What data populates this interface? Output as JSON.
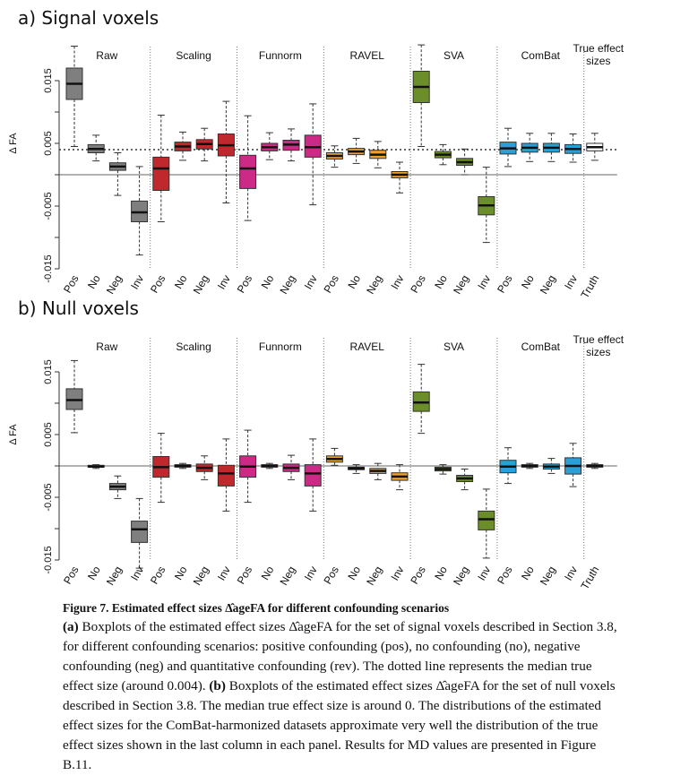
{
  "panels": [
    {
      "id": "a",
      "title": "a)  Signal voxels"
    },
    {
      "id": "b",
      "title": "b)  Null voxels"
    }
  ],
  "caption": {
    "title": "Figure 7. Estimated effect sizes Δ̂ageFA for different confounding scenarios",
    "part_a_label": "(a)",
    "part_a_text": " Boxplots of the estimated effect sizes Δ̂ageFA for the set of signal voxels described in Section 3.8, for different confounding scenarios: positive confounding (pos), no confounding (no), negative confounding (neg) and quantitative confounding (rev). The dotted line represents the median true effect size (around 0.004). ",
    "part_b_label": "(b)",
    "part_b_text": " Boxplots of the estimated effect sizes Δ̂ageFA for the set of null voxels described in Section 3.8. The median true effect size is around 0. The distributions of the estimated effect sizes for the ComBat-harmonized datasets approximate very well the distribution of the true effect sizes shown in the last column in each panel. Results for MD values are presented in Figure B.11."
  },
  "chart_data": [
    {
      "type": "boxplot",
      "title": "a)  Signal voxels",
      "ylabel": "Δ FA",
      "ylim": [
        -0.015,
        0.02
      ],
      "yticks": [
        "-0.015",
        "-0.005",
        "0.005",
        "0.015"
      ],
      "ytick_values": [
        -0.015,
        -0.005,
        0.005,
        0.015
      ],
      "hline_solid": 0,
      "hline_dotted": 0.004,
      "groups": [
        "Raw",
        "Scaling",
        "Funnorm",
        "RAVEL",
        "SVA",
        "ComBat",
        "True effect sizes"
      ],
      "colors": {
        "Raw": "#7f7f7f",
        "Scaling": "#c0282d",
        "Funnorm": "#cc2a86",
        "RAVEL": "#f0a02a",
        "SVA": "#6b8e2a",
        "ComBat": "#2aa0d8",
        "True effect sizes": "#ffffff"
      },
      "boxes": [
        {
          "group": "Raw",
          "label": "Pos",
          "min": 0.0045,
          "q1": 0.012,
          "median": 0.0145,
          "q3": 0.017,
          "max": 0.0205
        },
        {
          "group": "Raw",
          "label": "No",
          "min": 0.0022,
          "q1": 0.0035,
          "median": 0.0041,
          "q3": 0.0048,
          "max": 0.0063
        },
        {
          "group": "Raw",
          "label": "Neg",
          "min": -0.0033,
          "q1": 0.0007,
          "median": 0.0013,
          "q3": 0.0019,
          "max": 0.0035
        },
        {
          "group": "Raw",
          "label": "Inv",
          "min": -0.0128,
          "q1": -0.0075,
          "median": -0.006,
          "q3": -0.0042,
          "max": 0.0013
        },
        {
          "group": "Scaling",
          "label": "Pos",
          "min": -0.0075,
          "q1": -0.0025,
          "median": 0.001,
          "q3": 0.0028,
          "max": 0.0095
        },
        {
          "group": "Scaling",
          "label": "No",
          "min": 0.0023,
          "q1": 0.0038,
          "median": 0.0045,
          "q3": 0.0052,
          "max": 0.0068
        },
        {
          "group": "Scaling",
          "label": "Neg",
          "min": 0.0022,
          "q1": 0.0041,
          "median": 0.0049,
          "q3": 0.0056,
          "max": 0.0074
        },
        {
          "group": "Scaling",
          "label": "Inv",
          "min": -0.0045,
          "q1": 0.003,
          "median": 0.0047,
          "q3": 0.0065,
          "max": 0.0117
        },
        {
          "group": "Funnorm",
          "label": "Pos",
          "min": -0.0073,
          "q1": -0.0022,
          "median": 0.001,
          "q3": 0.0031,
          "max": 0.0094
        },
        {
          "group": "Funnorm",
          "label": "No",
          "min": 0.0024,
          "q1": 0.0038,
          "median": 0.0044,
          "q3": 0.005,
          "max": 0.0067
        },
        {
          "group": "Funnorm",
          "label": "Neg",
          "min": 0.0022,
          "q1": 0.0039,
          "median": 0.0048,
          "q3": 0.0055,
          "max": 0.0073
        },
        {
          "group": "Funnorm",
          "label": "Inv",
          "min": -0.0048,
          "q1": 0.0028,
          "median": 0.0044,
          "q3": 0.0063,
          "max": 0.0113
        },
        {
          "group": "RAVEL",
          "label": "Pos",
          "min": 0.0012,
          "q1": 0.0025,
          "median": 0.003,
          "q3": 0.0035,
          "max": 0.0046
        },
        {
          "group": "RAVEL",
          "label": "No",
          "min": 0.0018,
          "q1": 0.0032,
          "median": 0.0037,
          "q3": 0.0042,
          "max": 0.0058
        },
        {
          "group": "RAVEL",
          "label": "Neg",
          "min": 0.0011,
          "q1": 0.0026,
          "median": 0.0032,
          "q3": 0.0039,
          "max": 0.0053
        },
        {
          "group": "RAVEL",
          "label": "Inv",
          "min": -0.0029,
          "q1": -0.0005,
          "median": 0.0,
          "q3": 0.0005,
          "max": 0.002
        },
        {
          "group": "SVA",
          "label": "Pos",
          "min": 0.0045,
          "q1": 0.0115,
          "median": 0.014,
          "q3": 0.0165,
          "max": 0.0207
        },
        {
          "group": "SVA",
          "label": "No",
          "min": 0.0016,
          "q1": 0.0027,
          "median": 0.0032,
          "q3": 0.0037,
          "max": 0.0048
        },
        {
          "group": "SVA",
          "label": "Neg",
          "min": 0.0,
          "q1": 0.0015,
          "median": 0.002,
          "q3": 0.0026,
          "max": 0.0041
        },
        {
          "group": "SVA",
          "label": "Inv",
          "min": -0.0108,
          "q1": -0.0064,
          "median": -0.0049,
          "q3": -0.0035,
          "max": 0.0012
        },
        {
          "group": "ComBat",
          "label": "Pos",
          "min": 0.0013,
          "q1": 0.0033,
          "median": 0.0042,
          "q3": 0.0052,
          "max": 0.0074
        },
        {
          "group": "ComBat",
          "label": "No",
          "min": 0.0021,
          "q1": 0.0036,
          "median": 0.0043,
          "q3": 0.005,
          "max": 0.0066
        },
        {
          "group": "ComBat",
          "label": "Neg",
          "min": 0.0021,
          "q1": 0.0036,
          "median": 0.0043,
          "q3": 0.005,
          "max": 0.0066
        },
        {
          "group": "ComBat",
          "label": "Inv",
          "min": 0.002,
          "q1": 0.0034,
          "median": 0.0041,
          "q3": 0.0048,
          "max": 0.0065
        },
        {
          "group": "True effect sizes",
          "label": "Truth",
          "min": 0.0023,
          "q1": 0.0038,
          "median": 0.0044,
          "q3": 0.005,
          "max": 0.0066
        }
      ]
    },
    {
      "type": "boxplot",
      "title": "b)  Null voxels",
      "ylabel": "Δ FA",
      "ylim": [
        -0.015,
        0.02
      ],
      "yticks": [
        "-0.015",
        "-0.005",
        "0.005",
        "0.015"
      ],
      "ytick_values": [
        -0.015,
        -0.005,
        0.005,
        0.015
      ],
      "hline_solid": 0,
      "groups": [
        "Raw",
        "Scaling",
        "Funnorm",
        "RAVEL",
        "SVA",
        "ComBat",
        "True effect sizes"
      ],
      "colors": {
        "Raw": "#7f7f7f",
        "Scaling": "#c0282d",
        "Funnorm": "#cc2a86",
        "RAVEL": "#f0a02a",
        "SVA": "#6b8e2a",
        "ComBat": "#2aa0d8",
        "True effect sizes": "#ffffff"
      },
      "boxes": [
        {
          "group": "Raw",
          "label": "Pos",
          "min": 0.0053,
          "q1": 0.009,
          "median": 0.0105,
          "q3": 0.0123,
          "max": 0.0168
        },
        {
          "group": "Raw",
          "label": "No",
          "min": -0.0004,
          "q1": -0.0002,
          "median": -0.0001,
          "q3": 0.0001,
          "max": 0.0002
        },
        {
          "group": "Raw",
          "label": "Neg",
          "min": -0.0052,
          "q1": -0.0038,
          "median": -0.0033,
          "q3": -0.0028,
          "max": -0.0016
        },
        {
          "group": "Raw",
          "label": "Inv",
          "min": -0.0163,
          "q1": -0.0122,
          "median": -0.0101,
          "q3": -0.0088,
          "max": -0.0052
        },
        {
          "group": "Scaling",
          "label": "Pos",
          "min": -0.0058,
          "q1": -0.0018,
          "median": -0.0002,
          "q3": 0.0015,
          "max": 0.0052
        },
        {
          "group": "Scaling",
          "label": "No",
          "min": -0.0004,
          "q1": -0.0002,
          "median": 0.0,
          "q3": 0.0002,
          "max": 0.0004
        },
        {
          "group": "Scaling",
          "label": "Neg",
          "min": -0.0022,
          "q1": -0.0009,
          "median": -0.0003,
          "q3": 0.0003,
          "max": 0.0016
        },
        {
          "group": "Scaling",
          "label": "Inv",
          "min": -0.0072,
          "q1": -0.0032,
          "median": -0.0012,
          "q3": 0.0001,
          "max": 0.0043
        },
        {
          "group": "Funnorm",
          "label": "Pos",
          "min": -0.0058,
          "q1": -0.0018,
          "median": -0.0001,
          "q3": 0.0016,
          "max": 0.0057
        },
        {
          "group": "Funnorm",
          "label": "No",
          "min": -0.0004,
          "q1": -0.0002,
          "median": 0.0,
          "q3": 0.0002,
          "max": 0.0004
        },
        {
          "group": "Funnorm",
          "label": "Neg",
          "min": -0.0022,
          "q1": -0.0009,
          "median": -0.0003,
          "q3": 0.0003,
          "max": 0.0017
        },
        {
          "group": "Funnorm",
          "label": "Inv",
          "min": -0.0072,
          "q1": -0.0032,
          "median": -0.0012,
          "q3": 0.0002,
          "max": 0.0043
        },
        {
          "group": "RAVEL",
          "label": "Pos",
          "min": 0.0001,
          "q1": 0.0006,
          "median": 0.0011,
          "q3": 0.0016,
          "max": 0.0028
        },
        {
          "group": "RAVEL",
          "label": "No",
          "min": -0.0012,
          "q1": -0.0006,
          "median": -0.0004,
          "q3": -0.0002,
          "max": 0.0002
        },
        {
          "group": "RAVEL",
          "label": "Neg",
          "min": -0.0022,
          "q1": -0.0012,
          "median": -0.0008,
          "q3": -0.0004,
          "max": 0.0004
        },
        {
          "group": "RAVEL",
          "label": "Inv",
          "min": -0.0038,
          "q1": -0.0023,
          "median": -0.0017,
          "q3": -0.0011,
          "max": 0.0002
        },
        {
          "group": "SVA",
          "label": "Pos",
          "min": 0.0052,
          "q1": 0.0087,
          "median": 0.0101,
          "q3": 0.0118,
          "max": 0.0162
        },
        {
          "group": "SVA",
          "label": "No",
          "min": -0.0013,
          "q1": -0.0008,
          "median": -0.0005,
          "q3": -0.0002,
          "max": 0.0002
        },
        {
          "group": "SVA",
          "label": "Neg",
          "min": -0.0038,
          "q1": -0.0025,
          "median": -0.002,
          "q3": -0.0015,
          "max": -0.0005
        },
        {
          "group": "SVA",
          "label": "Inv",
          "min": -0.0147,
          "q1": -0.0102,
          "median": -0.0085,
          "q3": -0.0072,
          "max": -0.0037
        },
        {
          "group": "ComBat",
          "label": "Pos",
          "min": -0.0028,
          "q1": -0.0011,
          "median": -0.0001,
          "q3": 0.0009,
          "max": 0.0029
        },
        {
          "group": "ComBat",
          "label": "No",
          "min": -0.0004,
          "q1": -0.0002,
          "median": 0.0,
          "q3": 0.0002,
          "max": 0.0004
        },
        {
          "group": "ComBat",
          "label": "Neg",
          "min": -0.0012,
          "q1": -0.0005,
          "median": -0.0001,
          "q3": 0.0003,
          "max": 0.0012
        },
        {
          "group": "ComBat",
          "label": "Inv",
          "min": -0.0033,
          "q1": -0.0013,
          "median": 0.0,
          "q3": 0.0013,
          "max": 0.0036
        },
        {
          "group": "True effect sizes",
          "label": "Truth",
          "min": -0.0004,
          "q1": -0.0002,
          "median": 0.0,
          "q3": 0.0002,
          "max": 0.0004
        }
      ]
    }
  ]
}
